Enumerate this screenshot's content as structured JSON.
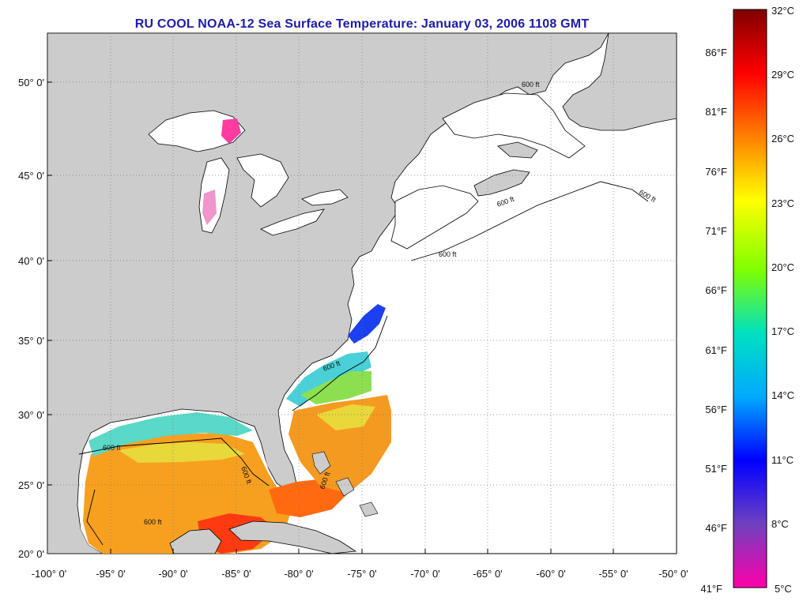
{
  "title": "RU COOL  NOAA-12  Sea Surface Temperature:  January 03, 2006 1108 GMT",
  "map": {
    "lat_labels": [
      "50° 0'",
      "45° 0'",
      "40° 0'",
      "35° 0'",
      "30° 0'",
      "25° 0'",
      "20° 0'"
    ],
    "lon_labels": [
      "-100° 0'",
      "-95° 0'",
      "-90° 0'",
      "-85° 0'",
      "-80° 0'",
      "-75° 0'",
      "-70° 0'",
      "-65° 0'",
      "-60° 0'",
      "-55° 0'",
      "-50° 0'"
    ],
    "contour_labels": [
      "600 ft",
      "600 ft",
      "600 ft",
      "600 ft",
      "600 ft",
      "600 ft",
      "600 ft",
      "600 ft",
      "600 ft"
    ],
    "colors": {
      "land": "#cccccc",
      "ocean": "#ffffff",
      "grid": "#777777",
      "title": "#1c1ca8"
    }
  },
  "colorbar": {
    "celsius": [
      "32°C",
      "29°C",
      "26°C",
      "23°C",
      "20°C",
      "17°C",
      "14°C",
      "11°C",
      "8°C",
      "5°C"
    ],
    "fahrenheit": [
      "86°F",
      "81°F",
      "76°F",
      "71°F",
      "66°F",
      "61°F",
      "56°F",
      "51°F",
      "46°F",
      "41°F"
    ],
    "gradient": [
      "#800000",
      "#ff0000",
      "#ff8000",
      "#ffff00",
      "#80ff00",
      "#00e0c0",
      "#00aaff",
      "#0000ff",
      "#7040c0",
      "#ff00aa"
    ]
  }
}
